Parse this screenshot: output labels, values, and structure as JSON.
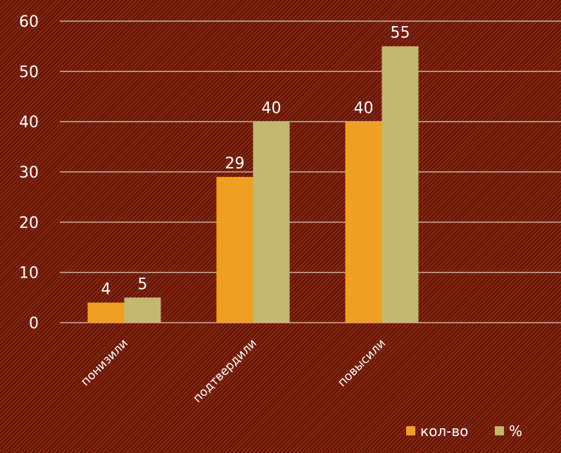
{
  "chart_data": {
    "type": "bar",
    "categories": [
      "понизили",
      "подтвердили",
      "повысили"
    ],
    "series": [
      {
        "name": "кол-во",
        "values": [
          4,
          29,
          40
        ],
        "color": "#f0a020"
      },
      {
        "name": "%",
        "values": [
          5,
          40,
          55
        ],
        "color": "#c2b870"
      }
    ],
    "ylim": [
      0,
      60
    ],
    "yticks": [
      0,
      10,
      20,
      30,
      40,
      50,
      60
    ],
    "grid": true,
    "legend_position": "bottom-right",
    "title": "",
    "xlabel": "",
    "ylabel": ""
  }
}
